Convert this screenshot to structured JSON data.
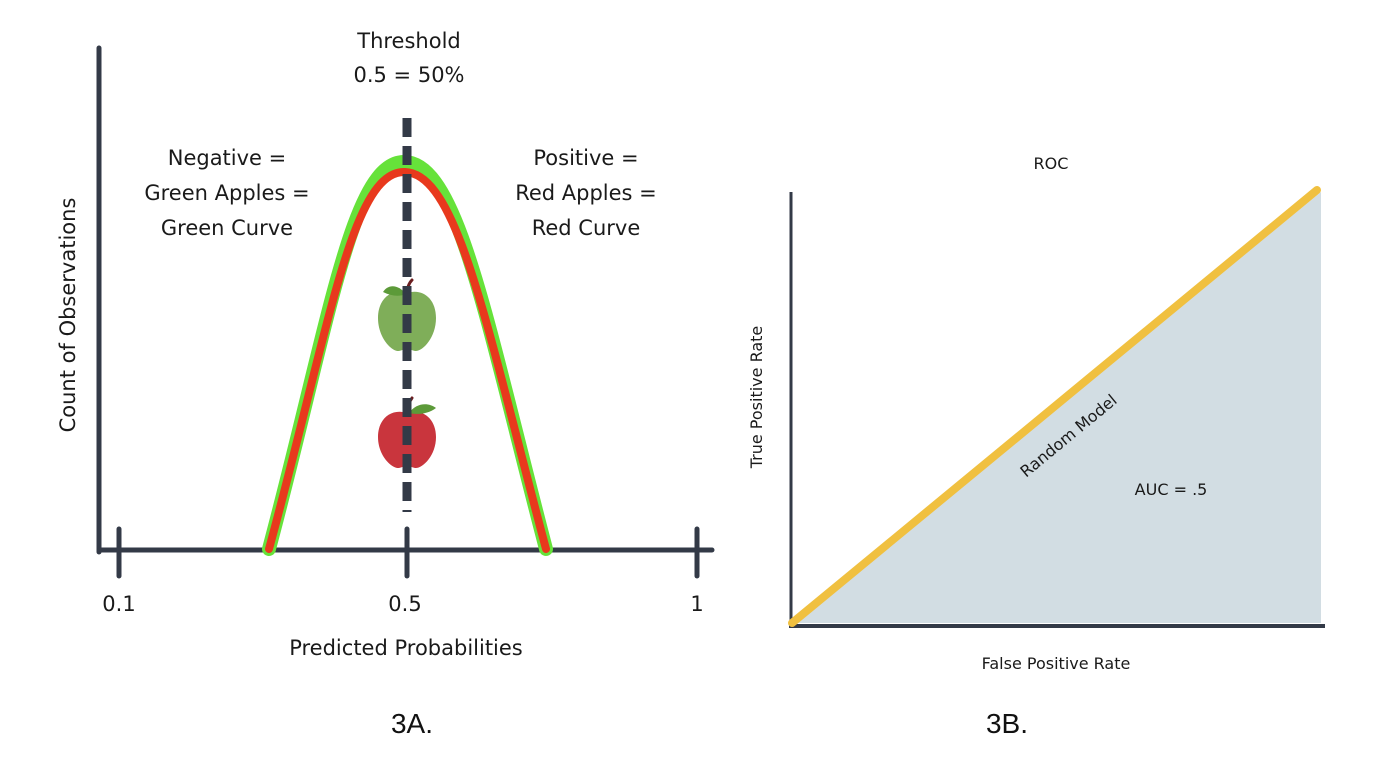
{
  "panel_a": {
    "threshold_line1": "Threshold",
    "threshold_line2": "0.5 = 50%",
    "negative_label": [
      "Negative =",
      "Green Apples =",
      "Green Curve"
    ],
    "positive_label": [
      "Positive =",
      "Red Apples =",
      "Red Curve"
    ],
    "y_axis_label": "Count of Observations",
    "x_axis_label": "Predicted Probabilities",
    "x_ticks": [
      "0.1",
      "0.5",
      "1"
    ],
    "caption": "3A.",
    "colors": {
      "axis": "#333a47",
      "green_curve": "#66e23a",
      "red_curve": "#e8391d",
      "green_apple": "#7fae59",
      "red_apple": "#c9353d",
      "apple_leaf": "#5c9a39",
      "apple_stem": "#6b1e20"
    },
    "icons": [
      "green-apple-icon",
      "red-apple-icon"
    ]
  },
  "panel_b": {
    "title": "ROC",
    "y_axis_label": "True Positive Rate",
    "x_axis_label": "False Positive Rate",
    "diagonal_label": "Random Model",
    "auc_label": "AUC = .5",
    "caption": "3B.",
    "colors": {
      "axis": "#333a47",
      "diagonal": "#f0c040",
      "area_fill": "#d2dde3"
    }
  }
}
